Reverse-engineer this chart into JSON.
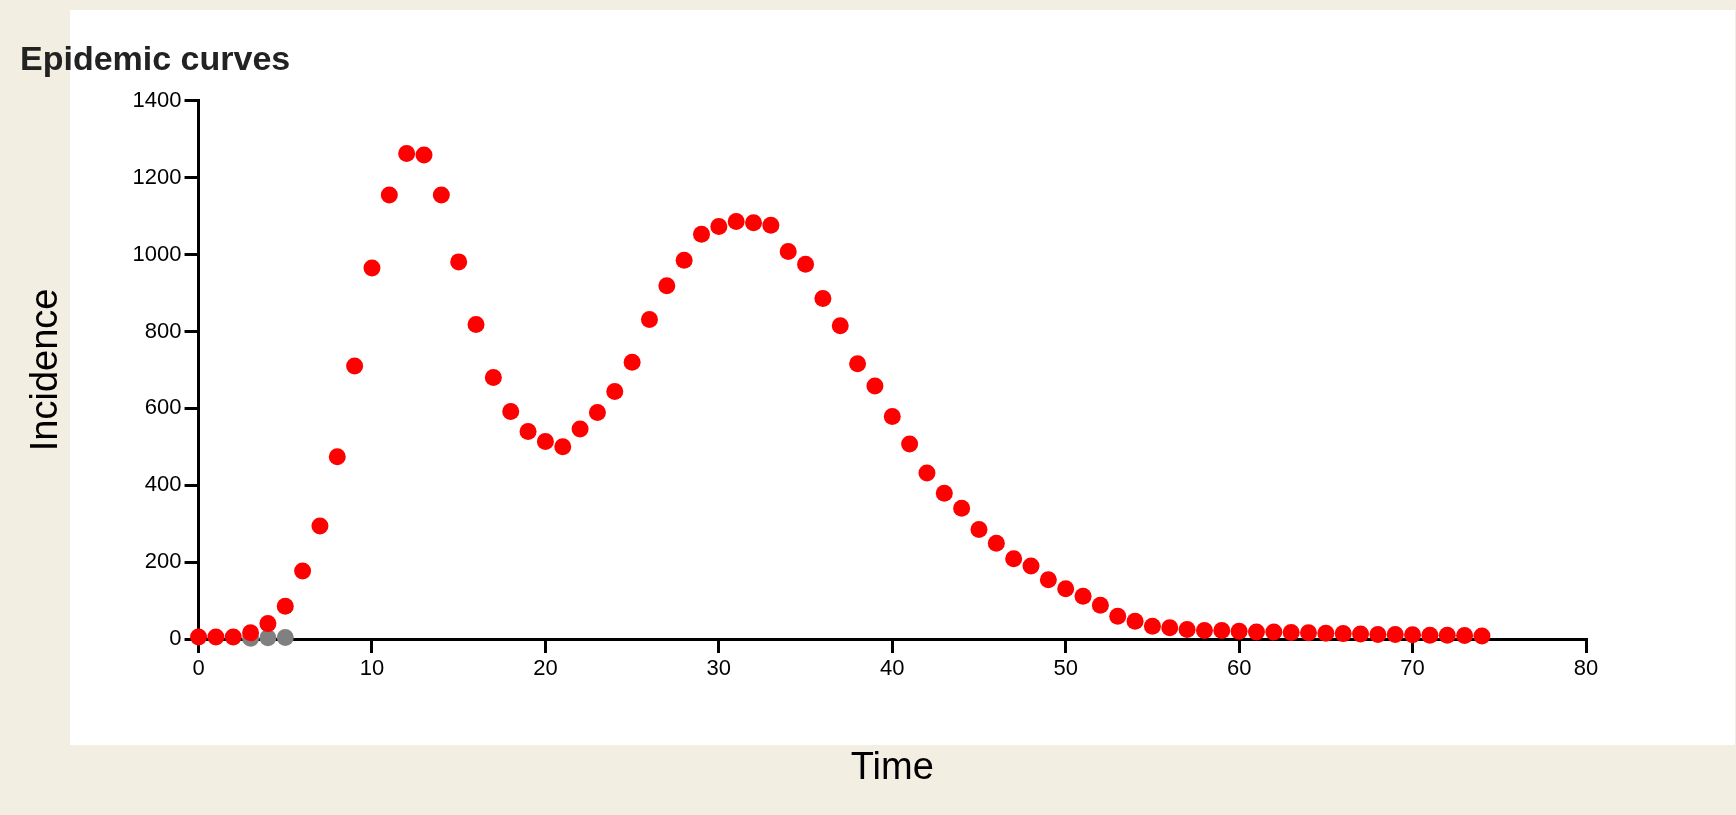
{
  "chart_data": {
    "type": "scatter",
    "title": "Epidemic curves",
    "xlabel": "Time",
    "ylabel": "Incidence",
    "xlim": [
      0,
      80
    ],
    "xticks": [
      0,
      10,
      20,
      30,
      40,
      50,
      60,
      70,
      80
    ],
    "ylim": [
      0,
      1400
    ],
    "yticks": [
      0,
      200,
      400,
      600,
      800,
      1000,
      1200,
      1400
    ],
    "grid": false,
    "legend": false,
    "marker": "circle",
    "series": [
      {
        "color": "#ff0000",
        "x": [
          0,
          1,
          2,
          3,
          4,
          5,
          6,
          7,
          8,
          9,
          10,
          11,
          12,
          13,
          14,
          15,
          16,
          17,
          18,
          19,
          20,
          21,
          22,
          23,
          24,
          25,
          26,
          27,
          28,
          29,
          30,
          31,
          32,
          33,
          34,
          35,
          36,
          37,
          38,
          39,
          40,
          41,
          42,
          43,
          44,
          45,
          46,
          47,
          48,
          49,
          50,
          51,
          52,
          53,
          54,
          55,
          56,
          57,
          58,
          59,
          60,
          61,
          62,
          63,
          64,
          65,
          66,
          67,
          68,
          69,
          70,
          71,
          72,
          73,
          74
        ],
        "values": [
          5,
          5,
          5,
          16,
          40,
          85,
          177,
          294,
          474,
          710,
          965,
          1155,
          1263,
          1259,
          1155,
          981,
          818,
          680,
          592,
          540,
          514,
          500,
          546,
          589,
          644,
          720,
          831,
          919,
          985,
          1053,
          1073,
          1086,
          1083,
          1076,
          1008,
          975,
          886,
          815,
          716,
          658,
          579,
          507,
          432,
          379,
          340,
          285,
          249,
          209,
          190,
          154,
          131,
          111,
          88,
          59,
          46,
          33,
          29,
          25,
          22,
          22,
          20,
          18,
          18,
          17,
          16,
          15,
          14,
          13,
          12,
          12,
          11,
          10,
          10,
          9,
          8
        ]
      },
      {
        "color": "#808080",
        "x": [
          3,
          4,
          5
        ],
        "values": [
          2,
          3,
          4
        ]
      }
    ]
  }
}
